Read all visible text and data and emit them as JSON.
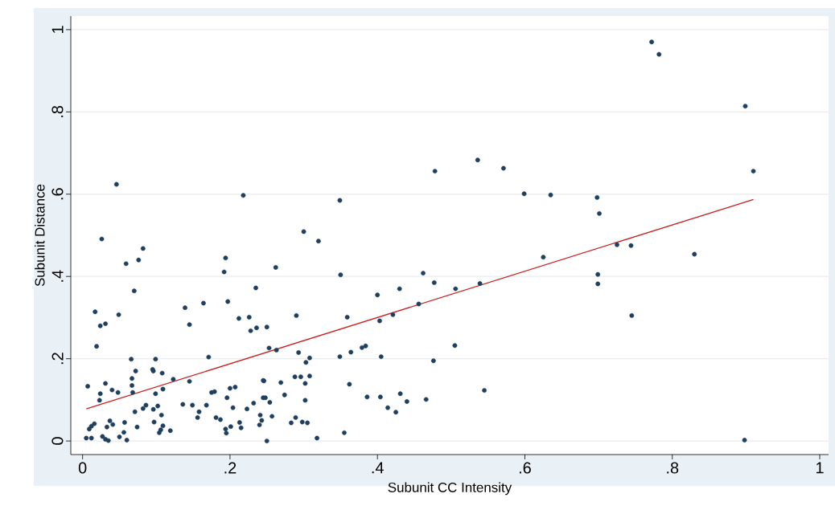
{
  "chart_data": {
    "type": "scatter",
    "xlabel": "Subunit CC Intensity",
    "ylabel": "Subunit Distance",
    "xlim": [
      -0.016,
      1.012
    ],
    "ylim": [
      -0.033,
      1.033
    ],
    "xticks": [
      0,
      {
        "value": 0.2,
        "label": ".2"
      },
      {
        "value": 0.4,
        "label": ".4"
      },
      {
        "value": 0.6,
        "label": ".6"
      },
      {
        "value": 0.8,
        "label": ".8"
      },
      1
    ],
    "yticks": [
      0,
      {
        "value": 0.2,
        "label": ".2"
      },
      {
        "value": 0.4,
        "label": ".4"
      },
      {
        "value": 0.6,
        "label": ".6"
      },
      {
        "value": 0.8,
        "label": ".8"
      },
      1
    ],
    "grid": "y",
    "legend": false,
    "series": [
      {
        "color": "#1f3f5f",
        "marker": "circle",
        "x": [
          0.046,
          0.218,
          0.026,
          0.082,
          0.059,
          0.076,
          0.194,
          0.192,
          0.07,
          0.235,
          0.017,
          0.024,
          0.031,
          0.049,
          0.019,
          0.139,
          0.145,
          0.164,
          0.197,
          0.212,
          0.226,
          0.228,
          0.236,
          0.066,
          0.099,
          0.171,
          0.072,
          0.095,
          0.096,
          0.108,
          0.007,
          0.031,
          0.067,
          0.067,
          0.068,
          0.04,
          0.048,
          0.024,
          0.023,
          0.099,
          0.109,
          0.123,
          0.145,
          0.071,
          0.082,
          0.086,
          0.096,
          0.102,
          0.107,
          0.136,
          0.149,
          0.158,
          0.156,
          0.168,
          0.179,
          0.175,
          0.196,
          0.2,
          0.207,
          0.204,
          0.223,
          0.232,
          0.245,
          0.245,
          0.241,
          0.243,
          0.24,
          0.181,
          0.187,
          0.194,
          0.195,
          0.201,
          0.213,
          0.215,
          0.009,
          0.012,
          0.016,
          0.005,
          0.012,
          0.027,
          0.031,
          0.035,
          0.033,
          0.037,
          0.041,
          0.05,
          0.056,
          0.057,
          0.06,
          0.074,
          0.097,
          0.106,
          0.109,
          0.104,
          0.119,
          0.349,
          0.3,
          0.32,
          0.262,
          0.35,
          0.462,
          0.477,
          0.4,
          0.43,
          0.506,
          0.29,
          0.359,
          0.403,
          0.421,
          0.456,
          0.25,
          0.253,
          0.263,
          0.293,
          0.303,
          0.308,
          0.349,
          0.364,
          0.379,
          0.384,
          0.405,
          0.476,
          0.505,
          0.246,
          0.269,
          0.288,
          0.296,
          0.302,
          0.308,
          0.362,
          0.248,
          0.254,
          0.274,
          0.302,
          0.386,
          0.404,
          0.431,
          0.44,
          0.466,
          0.414,
          0.425,
          0.257,
          0.283,
          0.289,
          0.298,
          0.305,
          0.25,
          0.318,
          0.355,
          0.478,
          0.772,
          0.782,
          0.899,
          0.91,
          0.536,
          0.571,
          0.599,
          0.635,
          0.698,
          0.701,
          0.625,
          0.725,
          0.744,
          0.83,
          0.699,
          0.699,
          0.539,
          0.745,
          0.545,
          0.898
        ],
        "values": [
          0.624,
          0.597,
          0.491,
          0.468,
          0.431,
          0.44,
          0.445,
          0.411,
          0.365,
          0.372,
          0.314,
          0.28,
          0.285,
          0.307,
          0.23,
          0.324,
          0.283,
          0.335,
          0.339,
          0.298,
          0.301,
          0.268,
          0.275,
          0.199,
          0.199,
          0.204,
          0.17,
          0.174,
          0.17,
          0.165,
          0.133,
          0.14,
          0.152,
          0.135,
          0.118,
          0.124,
          0.118,
          0.115,
          0.099,
          0.115,
          0.126,
          0.15,
          0.145,
          0.071,
          0.079,
          0.087,
          0.077,
          0.085,
          0.063,
          0.089,
          0.087,
          0.071,
          0.057,
          0.087,
          0.12,
          0.118,
          0.105,
          0.128,
          0.131,
          0.081,
          0.078,
          0.092,
          0.147,
          0.105,
          0.063,
          0.05,
          0.039,
          0.057,
          0.052,
          0.029,
          0.019,
          0.035,
          0.045,
          0.032,
          0.029,
          0.036,
          0.042,
          0.007,
          0.007,
          0.011,
          0.004,
          0.001,
          0.034,
          0.049,
          0.04,
          0.01,
          0.021,
          0.045,
          0.002,
          0.034,
          0.046,
          0.027,
          0.037,
          0.02,
          0.025,
          0.585,
          0.509,
          0.486,
          0.422,
          0.404,
          0.408,
          0.385,
          0.355,
          0.37,
          0.37,
          0.305,
          0.301,
          0.292,
          0.307,
          0.333,
          0.277,
          0.226,
          0.221,
          0.215,
          0.191,
          0.202,
          0.205,
          0.216,
          0.227,
          0.231,
          0.205,
          0.195,
          0.232,
          0.146,
          0.142,
          0.156,
          0.156,
          0.14,
          0.158,
          0.138,
          0.105,
          0.094,
          0.112,
          0.099,
          0.107,
          0.107,
          0.115,
          0.096,
          0.101,
          0.081,
          0.07,
          0.06,
          0.044,
          0.057,
          0.046,
          0.044,
          0.0,
          0.007,
          0.02,
          0.656,
          0.97,
          0.94,
          0.814,
          0.656,
          0.683,
          0.663,
          0.601,
          0.598,
          0.592,
          0.553,
          0.447,
          0.477,
          0.475,
          0.454,
          0.405,
          0.382,
          0.383,
          0.305,
          0.123,
          0.002
        ]
      },
      {
        "type": "line",
        "marker": "none",
        "color": "#cc1f1f",
        "x": [
          0.005,
          0.91
        ],
        "values": [
          0.078,
          0.587
        ]
      }
    ]
  }
}
